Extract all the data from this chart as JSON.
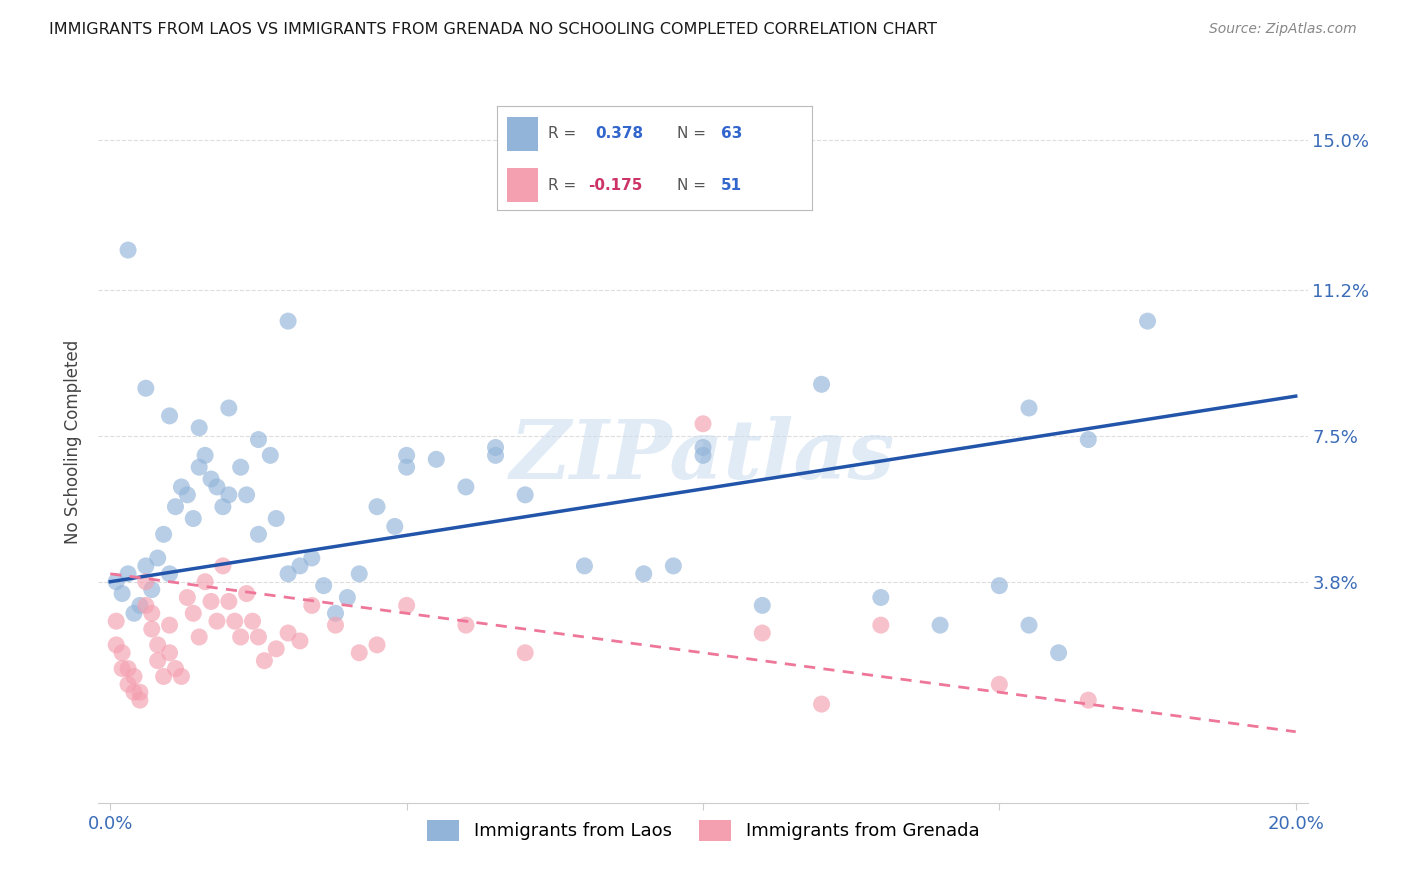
{
  "title": "IMMIGRANTS FROM LAOS VS IMMIGRANTS FROM GRENADA NO SCHOOLING COMPLETED CORRELATION CHART",
  "source": "Source: ZipAtlas.com",
  "ylabel": "No Schooling Completed",
  "ytick_labels": [
    "15.0%",
    "11.2%",
    "7.5%",
    "3.8%"
  ],
  "ytick_values": [
    0.15,
    0.112,
    0.075,
    0.038
  ],
  "xlim": [
    -0.002,
    0.202
  ],
  "ylim": [
    -0.018,
    0.165
  ],
  "laos_R": 0.378,
  "laos_N": 63,
  "grenada_R": -0.175,
  "grenada_N": 51,
  "laos_color": "#92B4D9",
  "grenada_color": "#F4A0B0",
  "laos_line_color": "#2255AA",
  "grenada_line_color": "#EE7799",
  "watermark": "ZIPatlas",
  "background_color": "#FFFFFF",
  "grid_color": "#DDDDDD",
  "laos_scatter": {
    "x": [
      0.001,
      0.002,
      0.003,
      0.004,
      0.005,
      0.006,
      0.007,
      0.008,
      0.009,
      0.01,
      0.011,
      0.012,
      0.013,
      0.014,
      0.015,
      0.016,
      0.017,
      0.018,
      0.019,
      0.02,
      0.022,
      0.023,
      0.025,
      0.027,
      0.028,
      0.03,
      0.032,
      0.034,
      0.036,
      0.038,
      0.04,
      0.042,
      0.045,
      0.048,
      0.05,
      0.055,
      0.06,
      0.065,
      0.07,
      0.08,
      0.09,
      0.095,
      0.1,
      0.11,
      0.12,
      0.13,
      0.14,
      0.15,
      0.155,
      0.16,
      0.003,
      0.006,
      0.01,
      0.015,
      0.02,
      0.025,
      0.03,
      0.05,
      0.065,
      0.1,
      0.155,
      0.165,
      0.175
    ],
    "y": [
      0.038,
      0.035,
      0.04,
      0.03,
      0.032,
      0.042,
      0.036,
      0.044,
      0.05,
      0.04,
      0.057,
      0.062,
      0.06,
      0.054,
      0.067,
      0.07,
      0.064,
      0.062,
      0.057,
      0.06,
      0.067,
      0.06,
      0.05,
      0.07,
      0.054,
      0.04,
      0.042,
      0.044,
      0.037,
      0.03,
      0.034,
      0.04,
      0.057,
      0.052,
      0.067,
      0.069,
      0.062,
      0.07,
      0.06,
      0.042,
      0.04,
      0.042,
      0.07,
      0.032,
      0.088,
      0.034,
      0.027,
      0.037,
      0.027,
      0.02,
      0.122,
      0.087,
      0.08,
      0.077,
      0.082,
      0.074,
      0.104,
      0.07,
      0.072,
      0.072,
      0.082,
      0.074,
      0.104
    ]
  },
  "grenada_scatter": {
    "x": [
      0.001,
      0.001,
      0.002,
      0.002,
      0.003,
      0.003,
      0.004,
      0.004,
      0.005,
      0.005,
      0.006,
      0.006,
      0.007,
      0.007,
      0.008,
      0.008,
      0.009,
      0.01,
      0.01,
      0.011,
      0.012,
      0.013,
      0.014,
      0.015,
      0.016,
      0.017,
      0.018,
      0.019,
      0.02,
      0.021,
      0.022,
      0.023,
      0.024,
      0.025,
      0.026,
      0.028,
      0.03,
      0.032,
      0.034,
      0.038,
      0.042,
      0.045,
      0.05,
      0.06,
      0.07,
      0.1,
      0.12,
      0.13,
      0.15,
      0.165,
      0.11
    ],
    "y": [
      0.028,
      0.022,
      0.02,
      0.016,
      0.016,
      0.012,
      0.014,
      0.01,
      0.01,
      0.008,
      0.038,
      0.032,
      0.03,
      0.026,
      0.022,
      0.018,
      0.014,
      0.027,
      0.02,
      0.016,
      0.014,
      0.034,
      0.03,
      0.024,
      0.038,
      0.033,
      0.028,
      0.042,
      0.033,
      0.028,
      0.024,
      0.035,
      0.028,
      0.024,
      0.018,
      0.021,
      0.025,
      0.023,
      0.032,
      0.027,
      0.02,
      0.022,
      0.032,
      0.027,
      0.02,
      0.078,
      0.007,
      0.027,
      0.012,
      0.008,
      0.025
    ]
  }
}
